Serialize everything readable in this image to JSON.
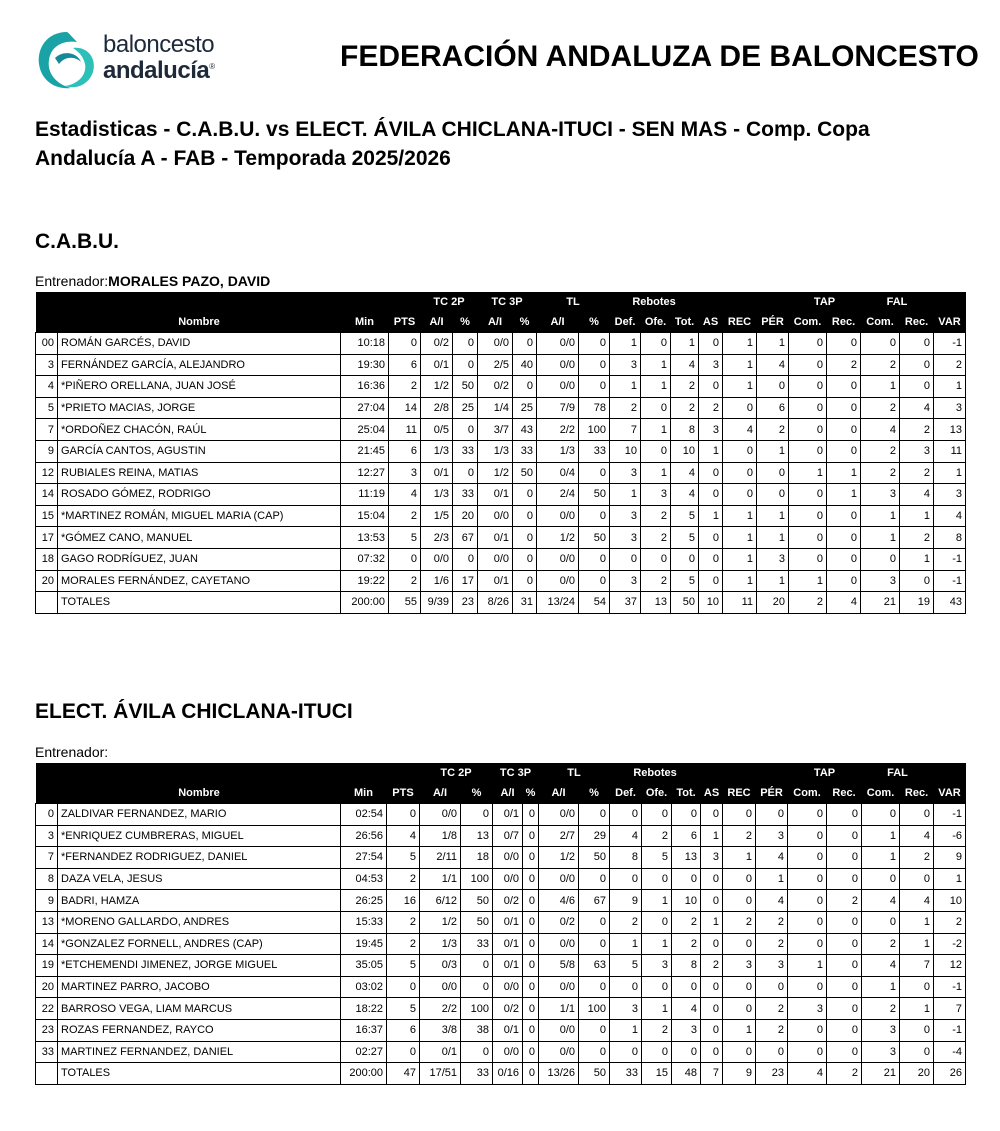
{
  "header": {
    "logo_line1": "baloncesto",
    "logo_line2": "andalucía",
    "logo_mark": "®",
    "title": "FEDERACIÓN ANDALUZA DE BALONCESTO",
    "subtitle": "Estadisticas - C.A.B.U. vs ELECT. ÁVILA CHICLANA-ITUCI - SEN MAS - Comp. Copa Andalucía A - FAB - Temporada 2025/2026"
  },
  "teams": [
    {
      "name": "C.A.B.U.",
      "coach_label": "Entrenador:",
      "coach_name": "MORALES PAZO, DAVID",
      "group_headers": [
        "TC 2P",
        "TC 3P",
        "TL",
        "Rebotes",
        "TAP",
        "FAL"
      ],
      "columns": [
        "Nombre",
        "Min",
        "PTS",
        "A/I",
        "%",
        "A/I",
        "%",
        "A/I",
        "%",
        "Def.",
        "Ofe.",
        "Tot.",
        "AS",
        "REC",
        "PÉR",
        "Com.",
        "Rec.",
        "Com.",
        "Rec.",
        "VAR"
      ],
      "rows": [
        [
          "00",
          "ROMÁN GARCÉS, DAVID",
          "10:18",
          "0",
          "0/2",
          "0",
          "0/0",
          "0",
          "0/0",
          "0",
          "1",
          "0",
          "1",
          "0",
          "1",
          "1",
          "0",
          "0",
          "0",
          "0",
          "-1"
        ],
        [
          "3",
          "FERNÁNDEZ GARCÍA, ALEJANDRO",
          "19:30",
          "6",
          "0/1",
          "0",
          "2/5",
          "40",
          "0/0",
          "0",
          "3",
          "1",
          "4",
          "3",
          "1",
          "4",
          "0",
          "2",
          "2",
          "0",
          "2"
        ],
        [
          "4",
          "*PIÑERO ORELLANA, JUAN JOSÉ",
          "16:36",
          "2",
          "1/2",
          "50",
          "0/2",
          "0",
          "0/0",
          "0",
          "1",
          "1",
          "2",
          "0",
          "1",
          "0",
          "0",
          "0",
          "1",
          "0",
          "1"
        ],
        [
          "5",
          "*PRIETO MACIAS, JORGE",
          "27:04",
          "14",
          "2/8",
          "25",
          "1/4",
          "25",
          "7/9",
          "78",
          "2",
          "0",
          "2",
          "2",
          "0",
          "6",
          "0",
          "0",
          "2",
          "4",
          "3"
        ],
        [
          "7",
          "*ORDOÑEZ CHACÓN, RAÚL",
          "25:04",
          "11",
          "0/5",
          "0",
          "3/7",
          "43",
          "2/2",
          "100",
          "7",
          "1",
          "8",
          "3",
          "4",
          "2",
          "0",
          "0",
          "4",
          "2",
          "13"
        ],
        [
          "9",
          "GARCÍA CANTOS, AGUSTIN",
          "21:45",
          "6",
          "1/3",
          "33",
          "1/3",
          "33",
          "1/3",
          "33",
          "10",
          "0",
          "10",
          "1",
          "0",
          "1",
          "0",
          "0",
          "2",
          "3",
          "11"
        ],
        [
          "12",
          "RUBIALES REINA, MATIAS",
          "12:27",
          "3",
          "0/1",
          "0",
          "1/2",
          "50",
          "0/4",
          "0",
          "3",
          "1",
          "4",
          "0",
          "0",
          "0",
          "1",
          "1",
          "2",
          "2",
          "1"
        ],
        [
          "14",
          "ROSADO GÓMEZ, RODRIGO",
          "11:19",
          "4",
          "1/3",
          "33",
          "0/1",
          "0",
          "2/4",
          "50",
          "1",
          "3",
          "4",
          "0",
          "0",
          "0",
          "0",
          "1",
          "3",
          "4",
          "3"
        ],
        [
          "15",
          "*MARTINEZ ROMÁN, MIGUEL MARIA (CAP)",
          "15:04",
          "2",
          "1/5",
          "20",
          "0/0",
          "0",
          "0/0",
          "0",
          "3",
          "2",
          "5",
          "1",
          "1",
          "1",
          "0",
          "0",
          "1",
          "1",
          "4"
        ],
        [
          "17",
          "*GÓMEZ CANO, MANUEL",
          "13:53",
          "5",
          "2/3",
          "67",
          "0/1",
          "0",
          "1/2",
          "50",
          "3",
          "2",
          "5",
          "0",
          "1",
          "1",
          "0",
          "0",
          "1",
          "2",
          "8"
        ],
        [
          "18",
          "GAGO RODRÍGUEZ, JUAN",
          "07:32",
          "0",
          "0/0",
          "0",
          "0/0",
          "0",
          "0/0",
          "0",
          "0",
          "0",
          "0",
          "0",
          "1",
          "3",
          "0",
          "0",
          "0",
          "1",
          "-1"
        ],
        [
          "20",
          "MORALES FERNÁNDEZ, CAYETANO",
          "19:22",
          "2",
          "1/6",
          "17",
          "0/1",
          "0",
          "0/0",
          "0",
          "3",
          "2",
          "5",
          "0",
          "1",
          "1",
          "1",
          "0",
          "3",
          "0",
          "-1"
        ]
      ],
      "totals": [
        "TOTALES",
        "200:00",
        "55",
        "9/39",
        "23",
        "8/26",
        "31",
        "13/24",
        "54",
        "37",
        "13",
        "50",
        "10",
        "11",
        "20",
        "2",
        "4",
        "21",
        "19",
        "43"
      ]
    },
    {
      "name": "ELECT. ÁVILA CHICLANA-ITUCI",
      "coach_label": "Entrenador:",
      "group_headers": [
        "TC 2P",
        "TC 3P",
        "TL",
        "Rebotes",
        "TAP",
        "FAL"
      ],
      "columns": [
        "Nombre",
        "Min",
        "PTS",
        "A/I",
        "%",
        "A/I",
        "%",
        "A/I",
        "%",
        "Def.",
        "Ofe.",
        "Tot.",
        "AS",
        "REC",
        "PÉR",
        "Com.",
        "Rec.",
        "Com.",
        "Rec.",
        "VAR"
      ],
      "rows": [
        [
          "0",
          "ZALDIVAR FERNANDEZ, MARIO",
          "02:54",
          "0",
          "0/0",
          "0",
          "0/1",
          "0",
          "0/0",
          "0",
          "0",
          "0",
          "0",
          "0",
          "0",
          "0",
          "0",
          "0",
          "0",
          "0",
          "-1"
        ],
        [
          "3",
          "*ENRIQUEZ CUMBRERAS, MIGUEL",
          "26:56",
          "4",
          "1/8",
          "13",
          "0/7",
          "0",
          "2/7",
          "29",
          "4",
          "2",
          "6",
          "1",
          "2",
          "3",
          "0",
          "0",
          "1",
          "4",
          "-6"
        ],
        [
          "7",
          "*FERNANDEZ RODRIGUEZ, DANIEL",
          "27:54",
          "5",
          "2/11",
          "18",
          "0/0",
          "0",
          "1/2",
          "50",
          "8",
          "5",
          "13",
          "3",
          "1",
          "4",
          "0",
          "0",
          "1",
          "2",
          "9"
        ],
        [
          "8",
          "DAZA VELA, JESUS",
          "04:53",
          "2",
          "1/1",
          "100",
          "0/0",
          "0",
          "0/0",
          "0",
          "0",
          "0",
          "0",
          "0",
          "0",
          "1",
          "0",
          "0",
          "0",
          "0",
          "1"
        ],
        [
          "9",
          "BADRI, HAMZA",
          "26:25",
          "16",
          "6/12",
          "50",
          "0/2",
          "0",
          "4/6",
          "67",
          "9",
          "1",
          "10",
          "0",
          "0",
          "4",
          "0",
          "2",
          "4",
          "4",
          "10"
        ],
        [
          "13",
          "*MORENO GALLARDO, ANDRES",
          "15:33",
          "2",
          "1/2",
          "50",
          "0/1",
          "0",
          "0/2",
          "0",
          "2",
          "0",
          "2",
          "1",
          "2",
          "2",
          "0",
          "0",
          "0",
          "1",
          "2"
        ],
        [
          "14",
          "*GONZALEZ FORNELL, ANDRES (CAP)",
          "19:45",
          "2",
          "1/3",
          "33",
          "0/1",
          "0",
          "0/0",
          "0",
          "1",
          "1",
          "2",
          "0",
          "0",
          "2",
          "0",
          "0",
          "2",
          "1",
          "-2"
        ],
        [
          "19",
          "*ETCHEMENDI JIMENEZ, JORGE MIGUEL",
          "35:05",
          "5",
          "0/3",
          "0",
          "0/1",
          "0",
          "5/8",
          "63",
          "5",
          "3",
          "8",
          "2",
          "3",
          "3",
          "1",
          "0",
          "4",
          "7",
          "12"
        ],
        [
          "20",
          "MARTINEZ PARRO, JACOBO",
          "03:02",
          "0",
          "0/0",
          "0",
          "0/0",
          "0",
          "0/0",
          "0",
          "0",
          "0",
          "0",
          "0",
          "0",
          "0",
          "0",
          "0",
          "1",
          "0",
          "-1"
        ],
        [
          "22",
          "BARROSO VEGA, LIAM MARCUS",
          "18:22",
          "5",
          "2/2",
          "100",
          "0/2",
          "0",
          "1/1",
          "100",
          "3",
          "1",
          "4",
          "0",
          "0",
          "2",
          "3",
          "0",
          "2",
          "1",
          "7"
        ],
        [
          "23",
          "ROZAS FERNANDEZ, RAYCO",
          "16:37",
          "6",
          "3/8",
          "38",
          "0/1",
          "0",
          "0/0",
          "0",
          "1",
          "2",
          "3",
          "0",
          "1",
          "2",
          "0",
          "0",
          "3",
          "0",
          "-1"
        ],
        [
          "33",
          "MARTINEZ FERNANDEZ, DANIEL",
          "02:27",
          "0",
          "0/1",
          "0",
          "0/0",
          "0",
          "0/0",
          "0",
          "0",
          "0",
          "0",
          "0",
          "0",
          "0",
          "0",
          "0",
          "3",
          "0",
          "-4"
        ]
      ],
      "totals": [
        "TOTALES",
        "200:00",
        "47",
        "17/51",
        "33",
        "0/16",
        "0",
        "13/26",
        "50",
        "33",
        "15",
        "48",
        "7",
        "9",
        "23",
        "4",
        "2",
        "21",
        "20",
        "26"
      ]
    }
  ]
}
